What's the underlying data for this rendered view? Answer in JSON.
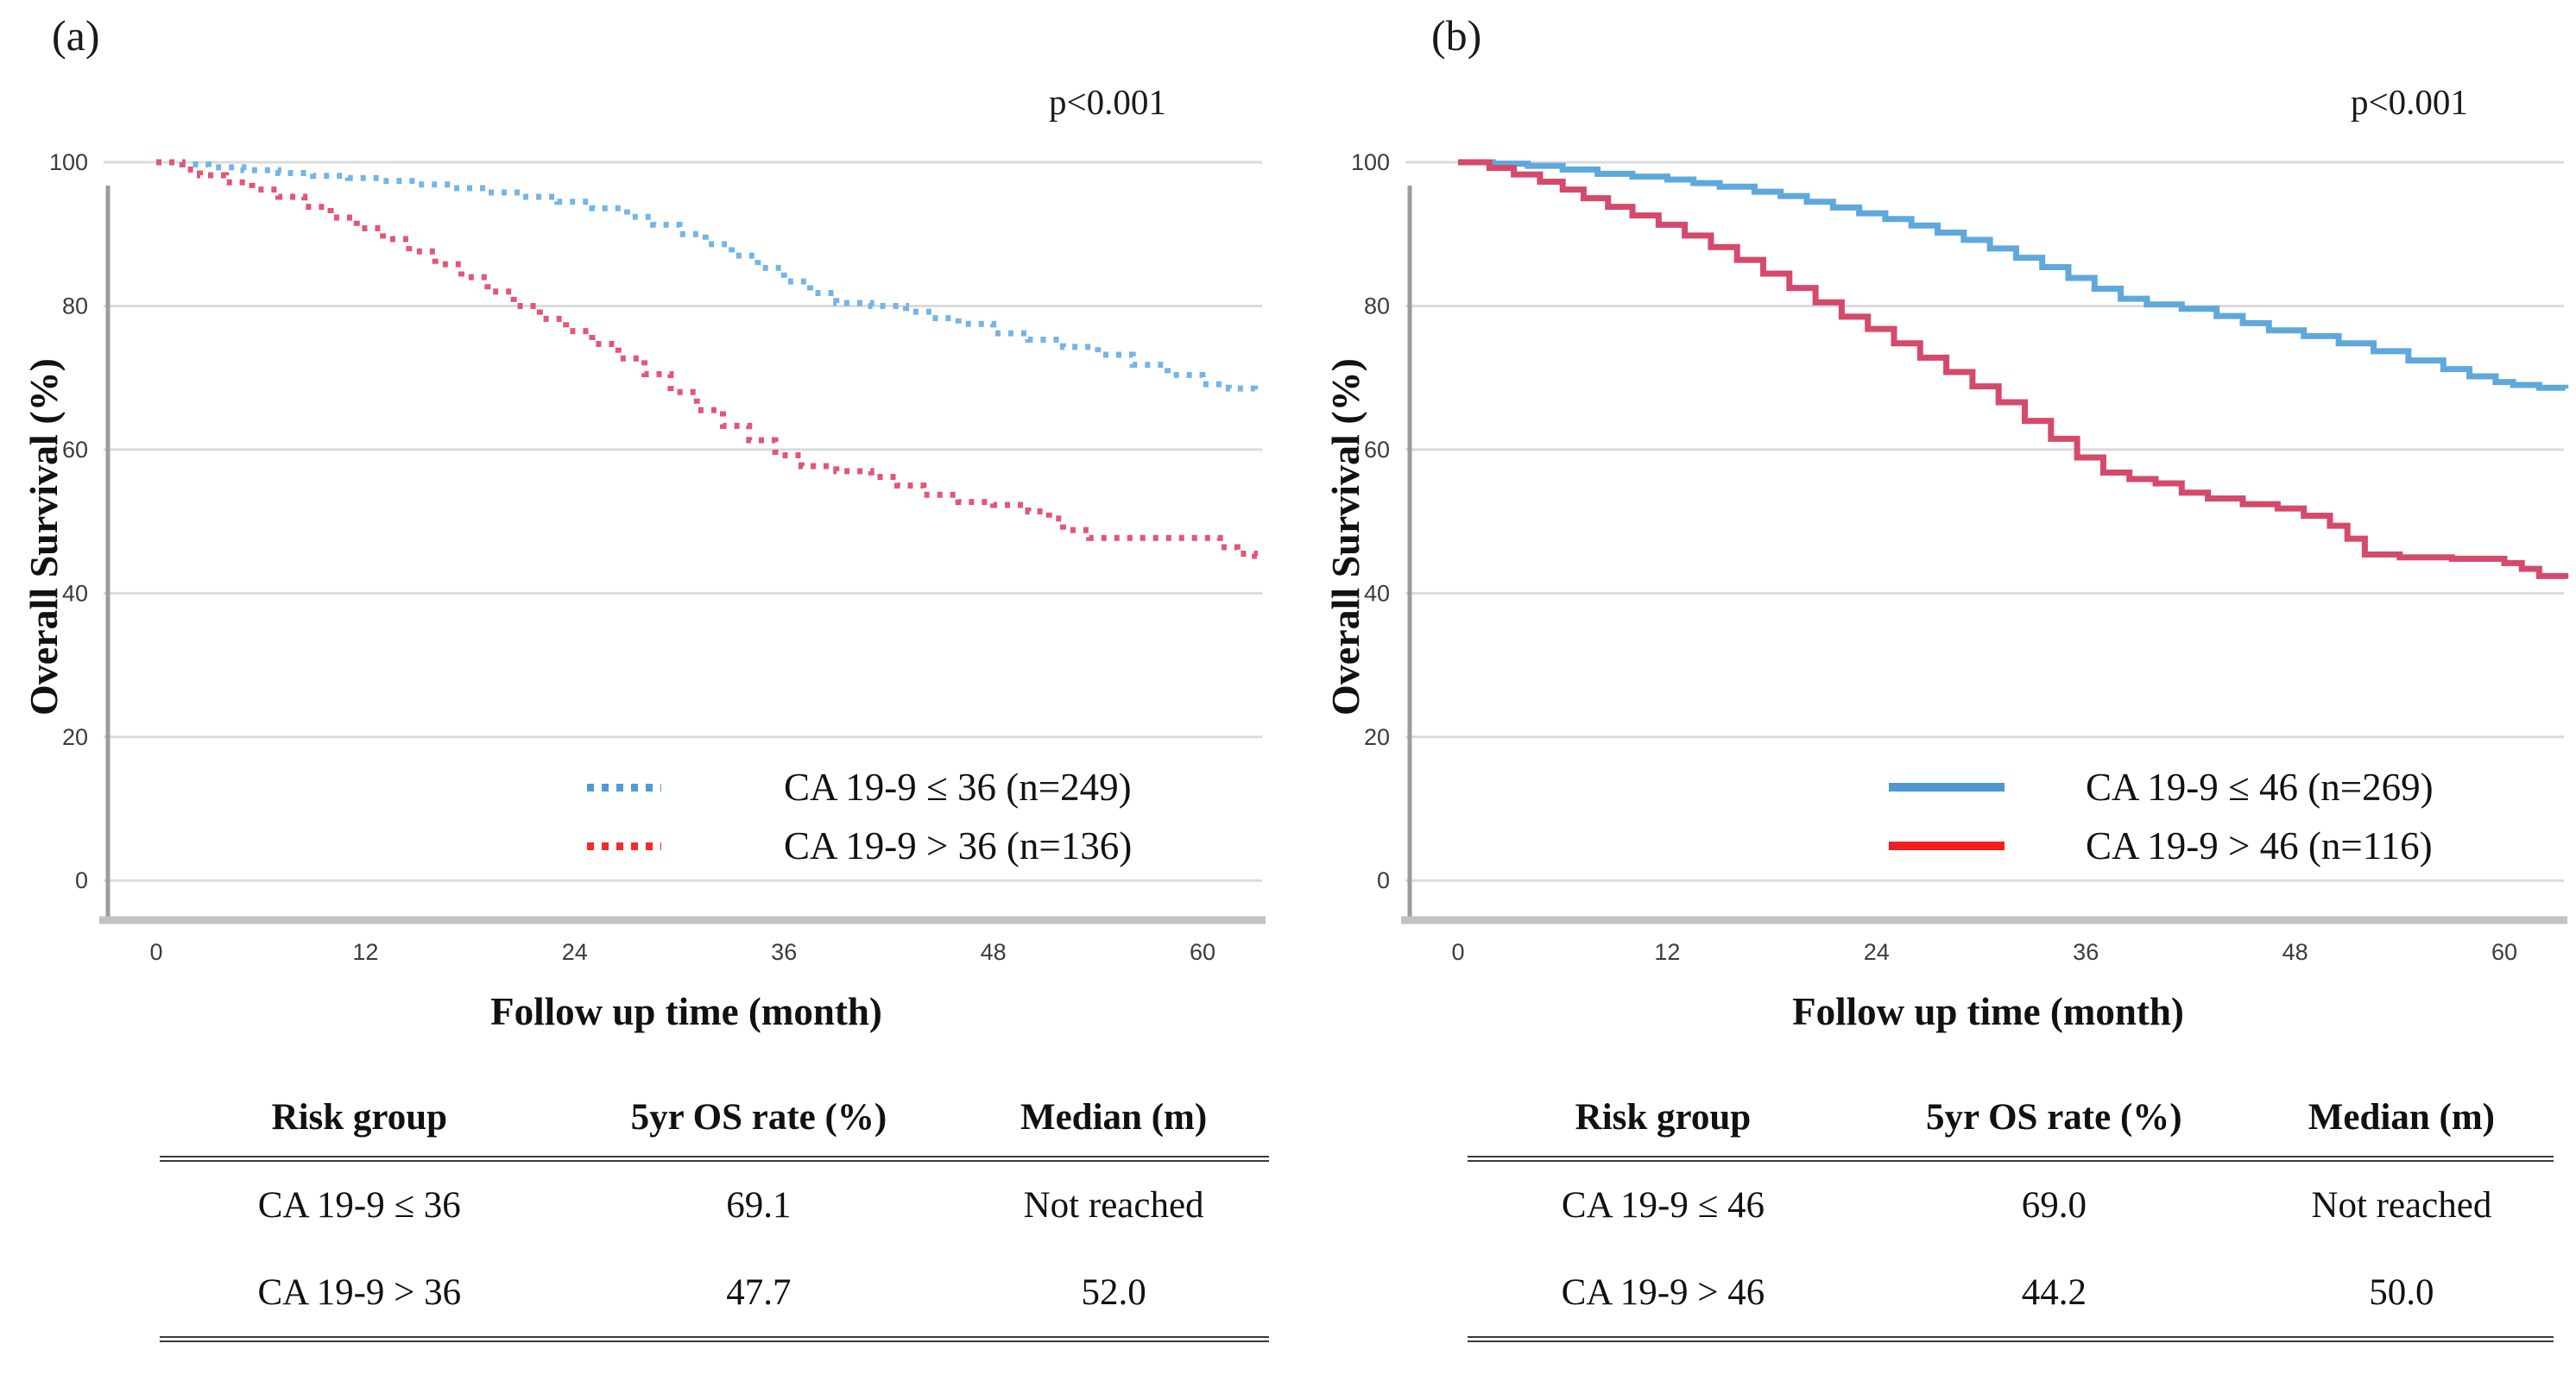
{
  "figure": {
    "panels": [
      {
        "label": "(a)",
        "p_value": "p<0.001",
        "y_axis_title": "Overall Survival (%)",
        "x_axis_title": "Follow up time (month)",
        "legend": [
          {
            "label": "CA 19-9 ≤ 36 (n=249)",
            "style": "dotted",
            "swatch_color": "#4F9BD9"
          },
          {
            "label": "CA 19-9 > 36 (n=136)",
            "style": "dotted",
            "swatch_color": "#F22B2B"
          }
        ],
        "table": {
          "headers": [
            "Risk group",
            "5yr OS rate (%)",
            "Median (m)"
          ],
          "rows": [
            [
              "CA 19-9 ≤ 36",
              "69.1",
              "Not reached"
            ],
            [
              "CA 19-9 > 36",
              "47.7",
              "52.0"
            ]
          ]
        }
      },
      {
        "label": "(b)",
        "p_value": "p<0.001",
        "y_axis_title": "Overall Survival (%)",
        "x_axis_title": "Follow up time (month)",
        "legend": [
          {
            "label": "CA 19-9 ≤ 46 (n=269)",
            "style": "solid",
            "swatch_color": "#4E97D1"
          },
          {
            "label": "CA 19-9 > 46 (n=116)",
            "style": "solid",
            "swatch_color": "#F21F1F"
          }
        ],
        "table": {
          "headers": [
            "Risk group",
            "5yr OS rate (%)",
            "Median (m)"
          ],
          "rows": [
            [
              "CA 19-9 ≤ 46",
              "69.0",
              "Not reached"
            ],
            [
              "CA 19-9 > 46",
              "44.2",
              "50.0"
            ]
          ]
        }
      }
    ]
  },
  "chart_data": [
    {
      "type": "line",
      "subtype": "kaplan_meier_step",
      "panel": "(a)",
      "xlabel": "Follow up time (month)",
      "ylabel": "Overall Survival (%)",
      "xlim": [
        0,
        63.3
      ],
      "ylim": [
        0,
        105
      ],
      "xticks": [
        0,
        12,
        24,
        36,
        48,
        60
      ],
      "yticks": [
        100,
        80,
        60,
        40,
        20,
        0
      ],
      "grid": true,
      "annotation": "p<0.001",
      "legend_position": "inside lower right",
      "series": [
        {
          "name": "CA 19-9 ≤ 36 (n=249)",
          "color": "#74B5E8",
          "line_style": "dotted",
          "five_year_os_pct": 69.1,
          "median_months": "Not reached",
          "points": [
            [
              0,
              100
            ],
            [
              1.5,
              99.7
            ],
            [
              3,
              99.3
            ],
            [
              5,
              98.9
            ],
            [
              7,
              98.5
            ],
            [
              9,
              98.1
            ],
            [
              11,
              97.8
            ],
            [
              13,
              97.4
            ],
            [
              15,
              96.9
            ],
            [
              17,
              96.4
            ],
            [
              19,
              95.8
            ],
            [
              21,
              95.2
            ],
            [
              23,
              94.5
            ],
            [
              25,
              93.6
            ],
            [
              27,
              92.4
            ],
            [
              28.5,
              91.3
            ],
            [
              30,
              90.0
            ],
            [
              31.5,
              88.6
            ],
            [
              33,
              87.0
            ],
            [
              34.5,
              85.3
            ],
            [
              36,
              83.4
            ],
            [
              37.5,
              81.8
            ],
            [
              39,
              80.4
            ],
            [
              41,
              80.0
            ],
            [
              43,
              79.2
            ],
            [
              44.5,
              78.3
            ],
            [
              46,
              77.5
            ],
            [
              48,
              76.2
            ],
            [
              50,
              75.3
            ],
            [
              52,
              74.3
            ],
            [
              54,
              73.2
            ],
            [
              56,
              71.8
            ],
            [
              58,
              70.4
            ],
            [
              60,
              69.1
            ],
            [
              61.5,
              68.5
            ],
            [
              63,
              68.3
            ]
          ]
        },
        {
          "name": "CA 19-9 > 36 (n=136)",
          "color": "#E25674",
          "line_style": "dotted",
          "five_year_os_pct": 47.7,
          "median_months": 52.0,
          "points": [
            [
              0,
              100
            ],
            [
              1.5,
              99.0
            ],
            [
              2.5,
              98.2
            ],
            [
              4,
              97.2
            ],
            [
              5.5,
              96.2
            ],
            [
              7,
              95.2
            ],
            [
              8.5,
              93.8
            ],
            [
              10,
              92.3
            ],
            [
              11.5,
              90.8
            ],
            [
              13,
              89.3
            ],
            [
              14.5,
              87.6
            ],
            [
              16,
              85.8
            ],
            [
              17.5,
              84.0
            ],
            [
              19,
              82.0
            ],
            [
              20.5,
              80.0
            ],
            [
              22,
              78.2
            ],
            [
              23.5,
              76.5
            ],
            [
              25,
              74.7
            ],
            [
              26.5,
              72.7
            ],
            [
              28,
              70.5
            ],
            [
              29.5,
              68.0
            ],
            [
              31,
              65.5
            ],
            [
              32.5,
              63.3
            ],
            [
              34,
              61.3
            ],
            [
              35.5,
              59.2
            ],
            [
              37,
              57.7
            ],
            [
              39,
              57.0
            ],
            [
              41,
              56.2
            ],
            [
              42.5,
              55.0
            ],
            [
              44,
              53.7
            ],
            [
              46,
              52.7
            ],
            [
              48,
              52.3
            ],
            [
              50,
              51.4
            ],
            [
              51.2,
              50.4
            ],
            [
              52,
              48.8
            ],
            [
              53.5,
              47.7
            ],
            [
              61,
              46.4
            ],
            [
              62,
              45.5
            ],
            [
              63,
              45.2
            ]
          ]
        }
      ]
    },
    {
      "type": "line",
      "subtype": "kaplan_meier_step",
      "panel": "(b)",
      "xlabel": "Follow up time (month)",
      "ylabel": "Overall Survival (%)",
      "xlim": [
        0,
        63.5
      ],
      "ylim": [
        0,
        105
      ],
      "xticks": [
        0,
        12,
        24,
        36,
        48,
        60
      ],
      "yticks": [
        100,
        80,
        60,
        40,
        20,
        0
      ],
      "grid": true,
      "annotation": "p<0.001",
      "legend_position": "inside lower right",
      "series": [
        {
          "name": "CA 19-9 ≤ 46 (n=269)",
          "color": "#5FA8DC",
          "line_style": "solid",
          "five_year_os_pct": 69.0,
          "median_months": "Not reached",
          "points": [
            [
              0,
              100
            ],
            [
              2,
              99.8
            ],
            [
              4,
              99.5
            ],
            [
              6,
              99.0
            ],
            [
              8,
              98.4
            ],
            [
              10,
              98.0
            ],
            [
              12,
              97.6
            ],
            [
              13.5,
              97.1
            ],
            [
              15,
              96.6
            ],
            [
              17,
              95.9
            ],
            [
              18.5,
              95.3
            ],
            [
              20,
              94.5
            ],
            [
              21.5,
              93.7
            ],
            [
              23,
              92.9
            ],
            [
              24.5,
              92.1
            ],
            [
              26,
              91.2
            ],
            [
              27.5,
              90.2
            ],
            [
              29,
              89.2
            ],
            [
              30.5,
              88.0
            ],
            [
              32,
              86.7
            ],
            [
              33.5,
              85.4
            ],
            [
              35,
              83.9
            ],
            [
              36.5,
              82.4
            ],
            [
              38,
              81.0
            ],
            [
              39.5,
              80.2
            ],
            [
              41.5,
              79.6
            ],
            [
              43.5,
              78.6
            ],
            [
              45,
              77.6
            ],
            [
              46.5,
              76.6
            ],
            [
              48.5,
              75.8
            ],
            [
              50.5,
              74.8
            ],
            [
              52.5,
              73.7
            ],
            [
              54.5,
              72.4
            ],
            [
              56.5,
              71.2
            ],
            [
              58,
              70.2
            ],
            [
              59.5,
              69.4
            ],
            [
              60.5,
              69.0
            ],
            [
              62,
              68.6
            ],
            [
              63.5,
              68.5
            ]
          ]
        },
        {
          "name": "CA 19-9 > 46 (n=116)",
          "color": "#D5496B",
          "line_style": "solid",
          "five_year_os_pct": 44.2,
          "median_months": 50.0,
          "points": [
            [
              0,
              100
            ],
            [
              1.8,
              99.2
            ],
            [
              3.2,
              98.3
            ],
            [
              4.7,
              97.3
            ],
            [
              6,
              96.2
            ],
            [
              7.2,
              95.0
            ],
            [
              8.6,
              93.8
            ],
            [
              10,
              92.6
            ],
            [
              11.5,
              91.3
            ],
            [
              13,
              89.8
            ],
            [
              14.5,
              88.2
            ],
            [
              16,
              86.4
            ],
            [
              17.5,
              84.5
            ],
            [
              19,
              82.5
            ],
            [
              20.5,
              80.5
            ],
            [
              22,
              78.5
            ],
            [
              23.5,
              76.8
            ],
            [
              25,
              74.8
            ],
            [
              26.5,
              72.8
            ],
            [
              28,
              70.8
            ],
            [
              29.5,
              68.8
            ],
            [
              31,
              66.6
            ],
            [
              32.5,
              64.0
            ],
            [
              34,
              61.5
            ],
            [
              35.5,
              58.9
            ],
            [
              37,
              56.8
            ],
            [
              38.5,
              55.9
            ],
            [
              40,
              55.3
            ],
            [
              41.5,
              54.0
            ],
            [
              43,
              53.2
            ],
            [
              45,
              52.4
            ],
            [
              47,
              51.8
            ],
            [
              48.5,
              50.8
            ],
            [
              50,
              49.4
            ],
            [
              51,
              47.6
            ],
            [
              52,
              45.4
            ],
            [
              54,
              45.0
            ],
            [
              57,
              44.8
            ],
            [
              60,
              44.2
            ],
            [
              61,
              43.4
            ],
            [
              62,
              42.4
            ],
            [
              63.5,
              42.0
            ]
          ]
        }
      ]
    }
  ]
}
